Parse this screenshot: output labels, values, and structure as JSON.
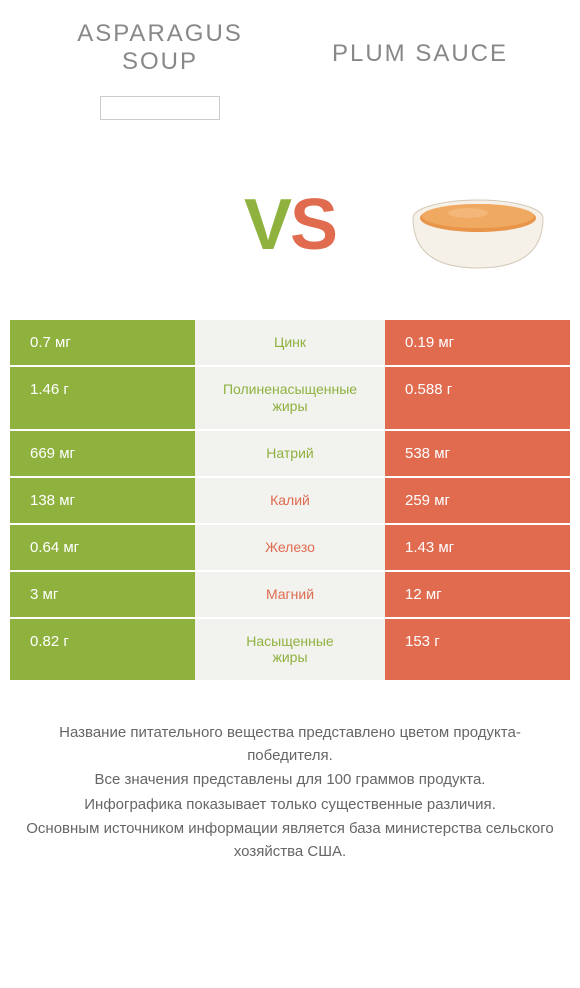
{
  "colors": {
    "green": "#8fb23f",
    "orange": "#e06b4f",
    "mid_bg": "#f2f2ef",
    "header_text": "#888888",
    "footnote_text": "#666666"
  },
  "header": {
    "left_title_1": "ASPARAGUS",
    "left_title_2": "SOUP",
    "right_title": "PLUM SAUCE"
  },
  "vs": {
    "v": "V",
    "s": "S"
  },
  "rows": [
    {
      "left": "0.7 мг",
      "mid": "Цинк",
      "mid_sub": "",
      "right": "0.19 мг",
      "winner": "left"
    },
    {
      "left": "1.46 г",
      "mid": "Полиненасыщенные",
      "mid_sub": "жиры",
      "right": "0.588 г",
      "winner": "left"
    },
    {
      "left": "669 мг",
      "mid": "Натрий",
      "mid_sub": "",
      "right": "538 мг",
      "winner": "left"
    },
    {
      "left": "138 мг",
      "mid": "Калий",
      "mid_sub": "",
      "right": "259 мг",
      "winner": "right"
    },
    {
      "left": "0.64 мг",
      "mid": "Железо",
      "mid_sub": "",
      "right": "1.43 мг",
      "winner": "right"
    },
    {
      "left": "3 мг",
      "mid": "Магний",
      "mid_sub": "",
      "right": "12 мг",
      "winner": "right"
    },
    {
      "left": "0.82 г",
      "mid": "Насыщенные",
      "mid_sub": "жиры",
      "right": "153 г",
      "winner": "left"
    }
  ],
  "footnote": {
    "line1": "Название питательного вещества представлено цветом продукта-победителя.",
    "line2": "Все значения представлены для 100 граммов продукта.",
    "line3": "Инфографика показывает только существенные различия.",
    "line4": "Основным источником информации является база министерства сельского хозяйства США."
  }
}
